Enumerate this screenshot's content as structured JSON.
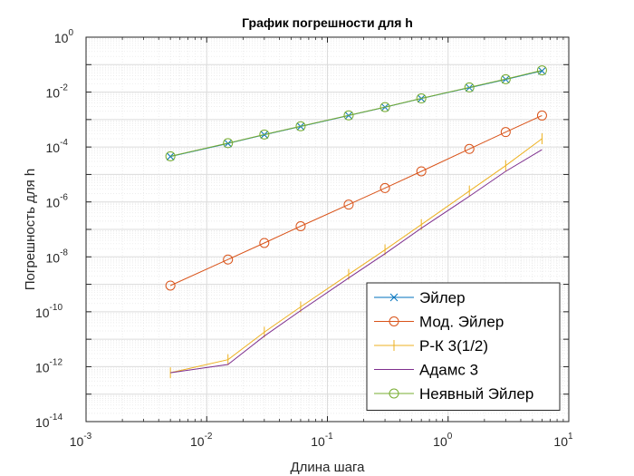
{
  "chart_data": {
    "type": "line",
    "title": "График погрешности для h",
    "xlabel": "Длина шага",
    "ylabel": "Погрешность для h",
    "xscale": "log",
    "yscale": "log",
    "xlim": [
      0.001,
      10
    ],
    "ylim": [
      1e-14,
      1
    ],
    "grid": true,
    "minor_grid": true,
    "legend_location": "bottom-right",
    "x": [
      0.005,
      0.015,
      0.03,
      0.06,
      0.15,
      0.3,
      0.6,
      1.5,
      3,
      6
    ],
    "x_tick_labels": [
      {
        "base": "10",
        "exp": "-3"
      },
      {
        "base": "10",
        "exp": "-2"
      },
      {
        "base": "10",
        "exp": "-1"
      },
      {
        "base": "10",
        "exp": "0"
      },
      {
        "base": "10",
        "exp": "1"
      }
    ],
    "y_tick_labels": [
      {
        "base": "10",
        "exp": "-14"
      },
      {
        "base": "10",
        "exp": "-12"
      },
      {
        "base": "10",
        "exp": "-10"
      },
      {
        "base": "10",
        "exp": "-8"
      },
      {
        "base": "10",
        "exp": "-6"
      },
      {
        "base": "10",
        "exp": "-4"
      },
      {
        "base": "10",
        "exp": "-2"
      },
      {
        "base": "10",
        "exp": "0"
      }
    ],
    "series": [
      {
        "name": "Эйлер",
        "color": "#0072BD",
        "marker": "x",
        "values": [
          4.5e-05,
          0.000135,
          0.00028,
          0.00056,
          0.0014,
          0.0028,
          0.0058,
          0.0145,
          0.029,
          0.059
        ]
      },
      {
        "name": "Мод. Эйлер",
        "color": "#D95319",
        "marker": "o",
        "values": [
          9e-10,
          8e-09,
          3.2e-08,
          1.3e-07,
          8e-07,
          3.2e-06,
          1.3e-05,
          8.5e-05,
          0.00035,
          0.0014
        ]
      },
      {
        "name": "Р-К 3(1/2)",
        "color": "#EDB120",
        "marker": "|",
        "values": [
          6e-13,
          1.8e-12,
          1.8e-11,
          1.5e-10,
          2.3e-09,
          1.8e-08,
          1.5e-07,
          2.5e-06,
          2.1e-05,
          0.0002
        ]
      },
      {
        "name": "Адамс 3",
        "color": "#7E2F8E",
        "marker": "none",
        "values": [
          6e-13,
          1.2e-12,
          1.3e-11,
          1.1e-10,
          1.7e-09,
          1.3e-08,
          1.1e-07,
          1.6e-06,
          1.3e-05,
          8e-05
        ]
      },
      {
        "name": "Неявный Эйлер",
        "color": "#77AC30",
        "marker": "o",
        "values": [
          4.6e-05,
          0.000138,
          0.000285,
          0.00057,
          0.00142,
          0.00285,
          0.0059,
          0.0148,
          0.0295,
          0.062
        ]
      }
    ]
  }
}
